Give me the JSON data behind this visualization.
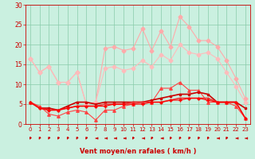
{
  "x": [
    0,
    1,
    2,
    3,
    4,
    5,
    6,
    7,
    8,
    9,
    10,
    11,
    12,
    13,
    14,
    15,
    16,
    17,
    18,
    19,
    20,
    21,
    22,
    23
  ],
  "series_data": [
    [
      16.5,
      13.0,
      14.5,
      10.5,
      10.5,
      13.0,
      5.0,
      5.5,
      19.0,
      19.5,
      18.5,
      19.0,
      24.0,
      18.5,
      23.5,
      19.5,
      27.0,
      24.5,
      21.0,
      21.0,
      19.5,
      16.0,
      11.5,
      6.5
    ],
    [
      16.5,
      13.0,
      14.5,
      10.5,
      10.5,
      13.0,
      5.0,
      5.5,
      14.0,
      14.5,
      13.5,
      14.0,
      16.0,
      14.5,
      17.5,
      16.0,
      20.0,
      18.0,
      17.5,
      18.0,
      16.5,
      13.0,
      9.5,
      5.5
    ],
    [
      5.5,
      4.5,
      2.5,
      2.0,
      3.0,
      3.5,
      3.0,
      1.0,
      3.5,
      3.5,
      4.5,
      5.0,
      5.5,
      5.5,
      9.0,
      9.0,
      10.5,
      8.5,
      8.5,
      5.5,
      5.5,
      5.5,
      4.5,
      1.5
    ],
    [
      5.5,
      4.0,
      4.0,
      3.5,
      4.5,
      5.5,
      5.5,
      5.0,
      5.5,
      5.5,
      5.5,
      5.5,
      5.5,
      6.0,
      6.5,
      7.0,
      7.5,
      7.5,
      8.0,
      7.5,
      5.5,
      5.5,
      5.5,
      4.0
    ],
    [
      5.5,
      4.0,
      3.5,
      3.5,
      4.0,
      4.5,
      4.5,
      4.5,
      5.0,
      5.0,
      5.0,
      5.5,
      5.5,
      5.5,
      5.5,
      6.0,
      6.5,
      6.5,
      6.5,
      6.5,
      5.5,
      5.5,
      5.5,
      1.5
    ],
    [
      5.5,
      4.0,
      3.5,
      3.5,
      4.0,
      4.5,
      4.5,
      4.5,
      4.5,
      5.0,
      5.0,
      5.0,
      5.0,
      5.5,
      5.5,
      6.0,
      6.0,
      6.5,
      6.5,
      6.0,
      5.5,
      5.5,
      5.5,
      1.5
    ]
  ],
  "line_colors": [
    "#ffaaaa",
    "#ffbbbb",
    "#ff4444",
    "#cc0000",
    "#ee3333",
    "#ff0000"
  ],
  "markers": [
    "D",
    "D",
    "^",
    "s",
    "s",
    "+"
  ],
  "lws": [
    0.8,
    0.8,
    0.8,
    1.2,
    1.2,
    0.8
  ],
  "ms": [
    2.5,
    2.5,
    2.5,
    2.0,
    2.0,
    3.5
  ],
  "wind_angles": [
    225,
    225,
    225,
    225,
    225,
    225,
    225,
    270,
    270,
    270,
    270,
    225,
    270,
    225,
    270,
    225,
    225,
    225,
    225,
    225,
    270,
    225,
    270,
    270
  ],
  "ylim": [
    0,
    30
  ],
  "yticks": [
    0,
    5,
    10,
    15,
    20,
    25,
    30
  ],
  "xlim": [
    -0.5,
    23.5
  ],
  "xticks": [
    0,
    1,
    2,
    3,
    4,
    5,
    6,
    7,
    8,
    9,
    10,
    11,
    12,
    13,
    14,
    15,
    16,
    17,
    18,
    19,
    20,
    21,
    22,
    23
  ],
  "xlabel": "Vent moyen/en rafales ( km/h )",
  "bg_color": "#caf0e0",
  "grid_color": "#88ccaa",
  "text_color": "#cc0000",
  "arrow_color": "#cc0000"
}
